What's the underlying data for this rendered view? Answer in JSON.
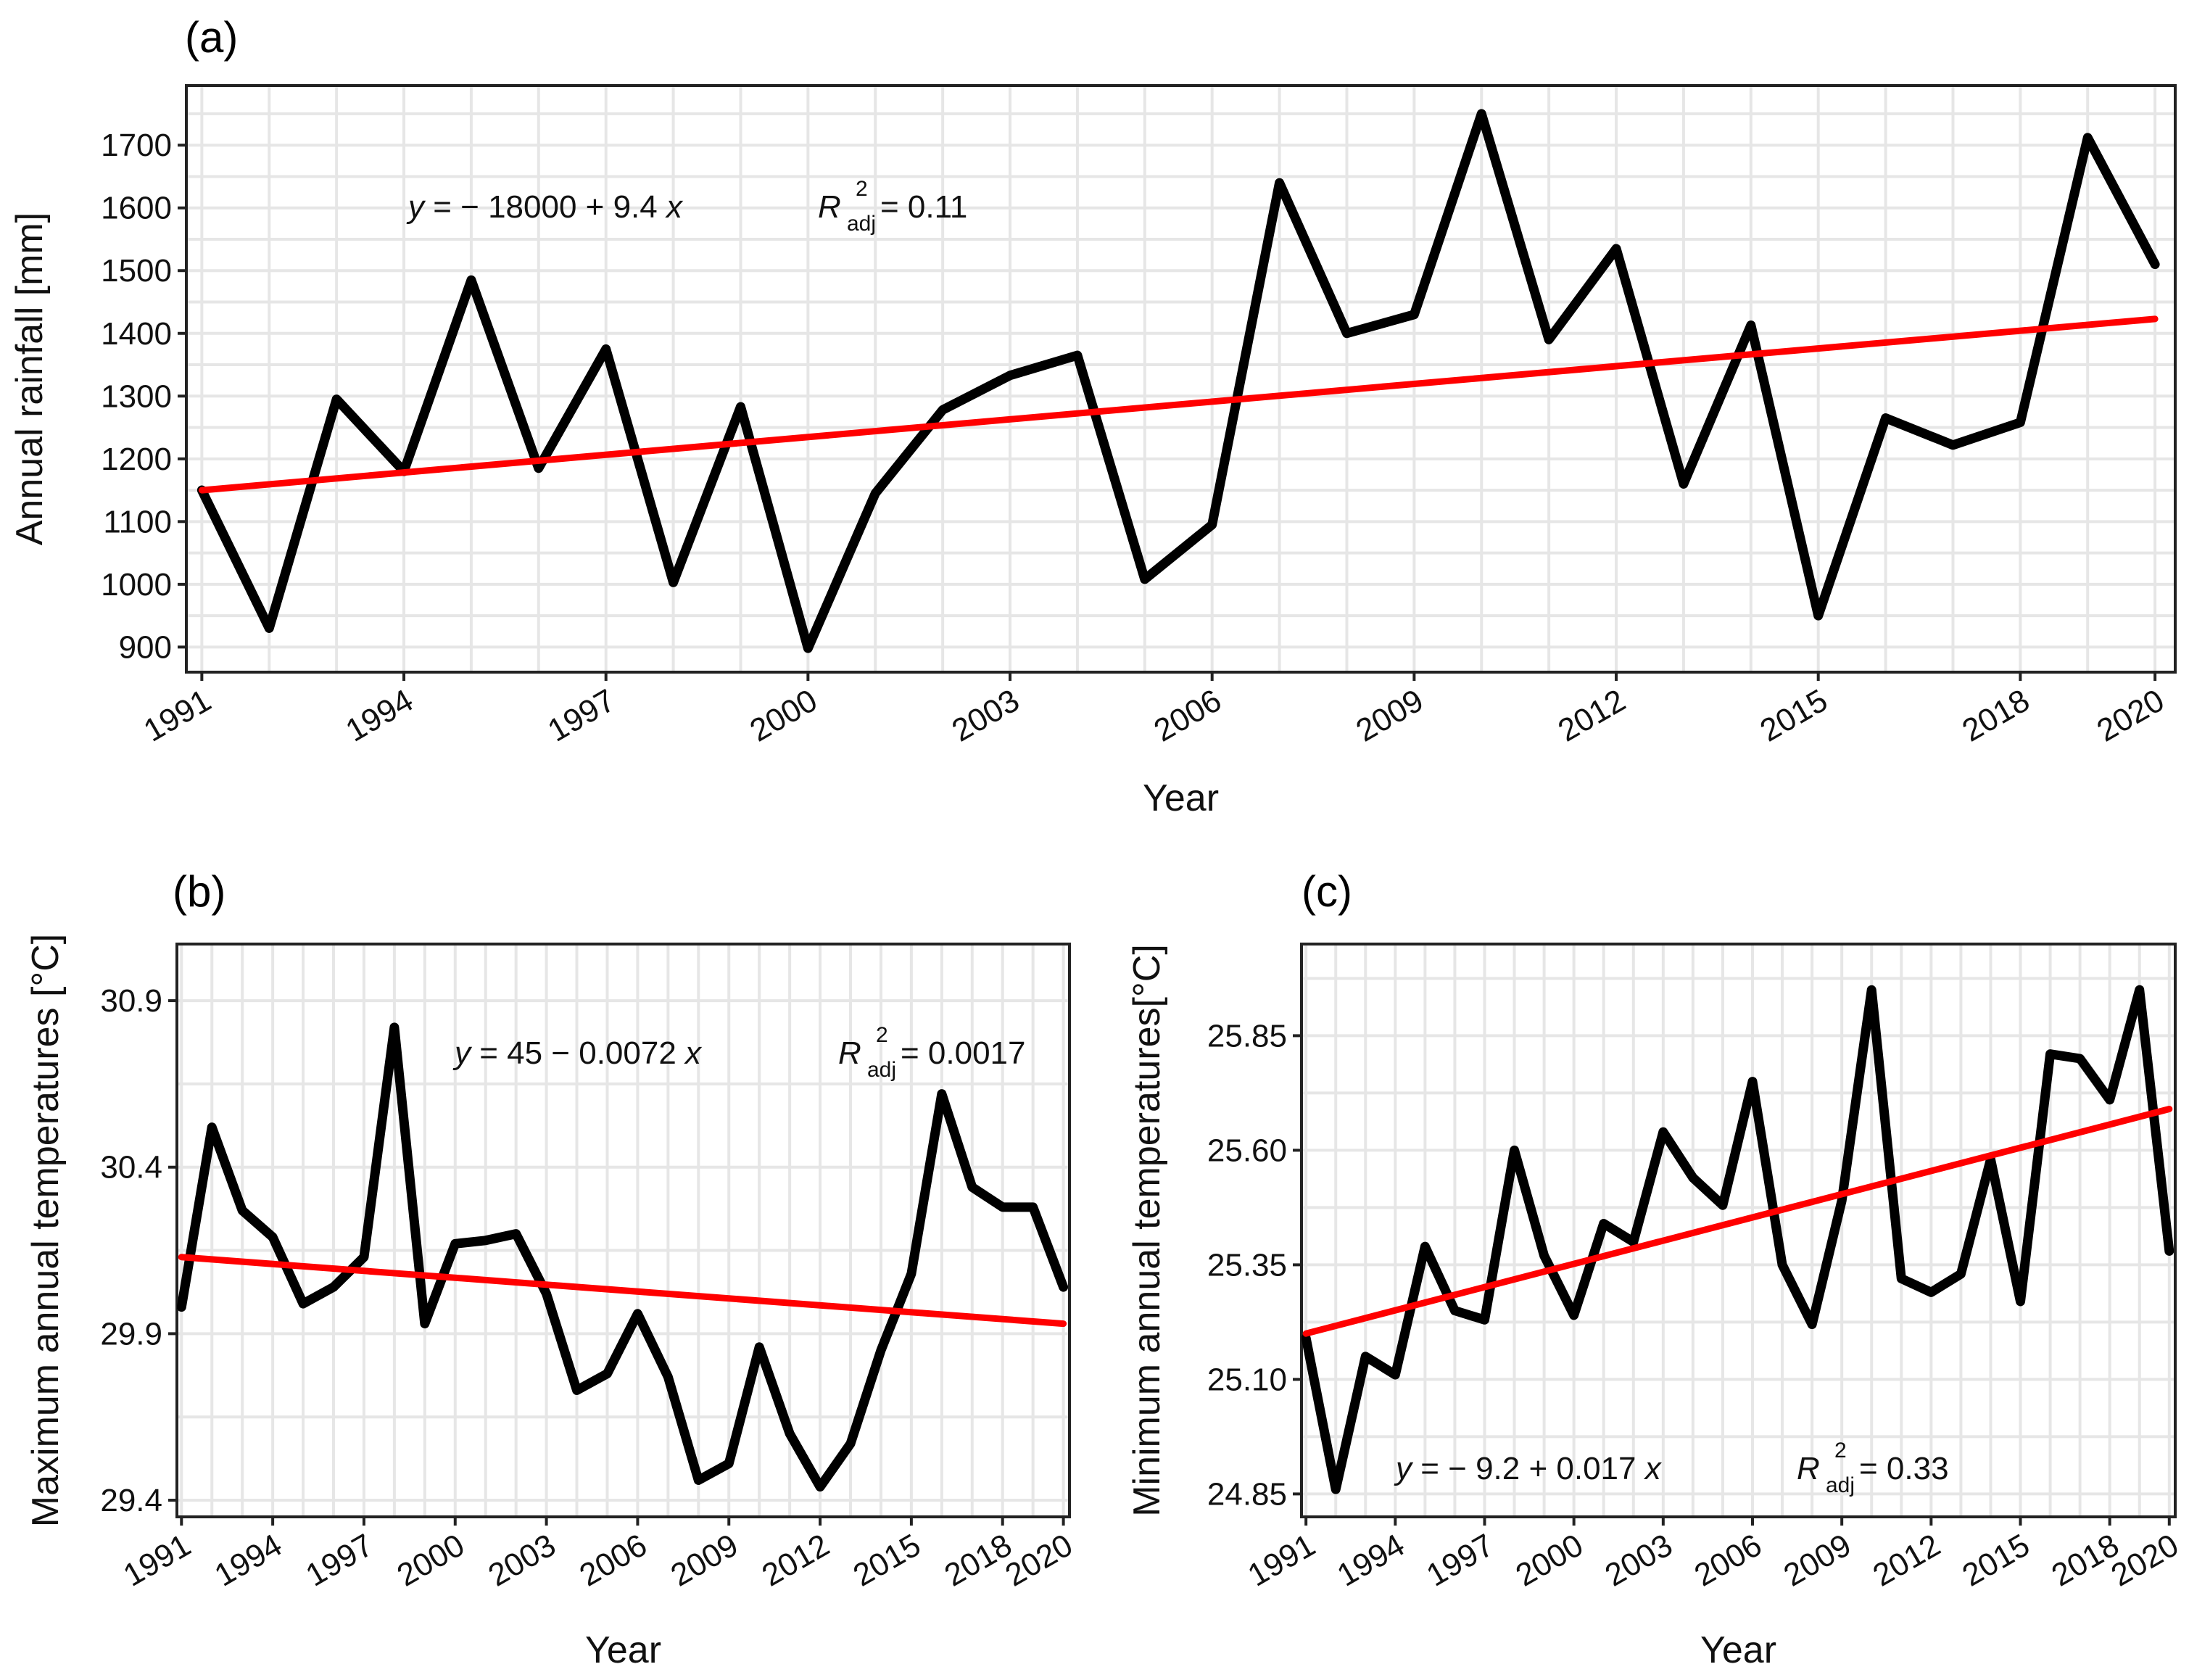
{
  "colors": {
    "observed": "#000000",
    "trend": "#ff0000",
    "grid": "#e6e6e6",
    "background": "#ffffff"
  },
  "chart_data": [
    {
      "id": "a",
      "type": "line",
      "panel_label": "(a)",
      "xlabel": "Year",
      "ylabel": "Annual rainfall [mm]",
      "x": [
        1991,
        1992,
        1993,
        1994,
        1995,
        1996,
        1997,
        1998,
        1999,
        2000,
        2001,
        2002,
        2003,
        2004,
        2005,
        2006,
        2007,
        2008,
        2009,
        2010,
        2011,
        2012,
        2013,
        2014,
        2015,
        2016,
        2017,
        2018,
        2019,
        2020
      ],
      "values": [
        1150,
        930,
        1295,
        1180,
        1485,
        1185,
        1375,
        1003,
        1283,
        898,
        1145,
        1278,
        1333,
        1365,
        1008,
        1095,
        1640,
        1400,
        1430,
        1750,
        1390,
        1535,
        1160,
        1413,
        950,
        1265,
        1222,
        1258,
        1712,
        1510
      ],
      "trend": {
        "intercept": -18000,
        "slope": 9.4,
        "start": [
          1991,
          1150
        ],
        "end": [
          2020,
          1423
        ]
      },
      "xticks": [
        "1991",
        "1994",
        "1997",
        "2000",
        "2003",
        "2006",
        "2009",
        "2012",
        "2015",
        "2018",
        "2020"
      ],
      "yticks": [
        "900",
        "1000",
        "1100",
        "1200",
        "1300",
        "1400",
        "1500",
        "1600",
        "1700"
      ],
      "ylim": [
        860,
        1795
      ],
      "equation": {
        "y": "y",
        "rhs": " = − 18000 + 9.4 ",
        "x": "x"
      },
      "r2": {
        "R": "R",
        "sup": "2",
        "sub": "adj",
        "value": " = 0.11"
      }
    },
    {
      "id": "b",
      "type": "line",
      "panel_label": "(b)",
      "xlabel": "Year",
      "ylabel": "Maximum annual temperatures [°C]",
      "x": [
        1991,
        1992,
        1993,
        1994,
        1995,
        1996,
        1997,
        1998,
        1999,
        2000,
        2001,
        2002,
        2003,
        2004,
        2005,
        2006,
        2007,
        2008,
        2009,
        2010,
        2011,
        2012,
        2013,
        2014,
        2015,
        2016,
        2017,
        2018,
        2019,
        2020
      ],
      "values": [
        29.98,
        30.52,
        30.27,
        30.19,
        29.99,
        30.04,
        30.13,
        30.82,
        29.93,
        30.17,
        30.18,
        30.2,
        30.02,
        29.73,
        29.78,
        29.96,
        29.77,
        29.46,
        29.51,
        29.86,
        29.6,
        29.44,
        29.57,
        29.85,
        30.08,
        30.62,
        30.34,
        30.28,
        30.28,
        30.04
      ],
      "trend": {
        "intercept": 45,
        "slope": -0.0072,
        "start": [
          1991,
          30.13
        ],
        "end": [
          2020,
          29.93
        ]
      },
      "xticks": [
        "1991",
        "1994",
        "1997",
        "2000",
        "2003",
        "2006",
        "2009",
        "2012",
        "2015",
        "2018",
        "2020"
      ],
      "yticks": [
        "29.4",
        "29.9",
        "30.4",
        "30.9"
      ],
      "ylim": [
        29.35,
        31.07
      ],
      "equation": {
        "y": "y",
        "rhs": " = 45 − 0.0072 ",
        "x": "x"
      },
      "r2": {
        "R": "R",
        "sup": "2",
        "sub": "adj",
        "value": " = 0.0017"
      }
    },
    {
      "id": "c",
      "type": "line",
      "panel_label": "(c)",
      "xlabel": "Year",
      "ylabel": "Minimum annual temperatures[°C]",
      "x": [
        1991,
        1992,
        1993,
        1994,
        1995,
        1996,
        1997,
        1998,
        1999,
        2000,
        2001,
        2002,
        2003,
        2004,
        2005,
        2006,
        2007,
        2008,
        2009,
        2010,
        2011,
        2012,
        2013,
        2014,
        2015,
        2016,
        2017,
        2018,
        2019,
        2020
      ],
      "values": [
        25.19,
        24.86,
        25.15,
        25.11,
        25.39,
        25.25,
        25.23,
        25.6,
        25.37,
        25.24,
        25.44,
        25.4,
        25.64,
        25.54,
        25.48,
        25.75,
        25.35,
        25.22,
        25.49,
        25.95,
        25.32,
        25.29,
        25.33,
        25.58,
        25.27,
        25.81,
        25.8,
        25.71,
        25.95,
        25.38
      ],
      "trend": {
        "intercept": -9.2,
        "slope": 0.017,
        "start": [
          1991,
          25.2
        ],
        "end": [
          2020,
          25.69
        ]
      },
      "xticks": [
        "1991",
        "1994",
        "1997",
        "2000",
        "2003",
        "2006",
        "2009",
        "2012",
        "2015",
        "2018",
        "2020"
      ],
      "yticks": [
        "24.85",
        "25.10",
        "25.35",
        "25.60",
        "25.85"
      ],
      "ylim": [
        24.8,
        26.05
      ],
      "equation": {
        "y": "y",
        "rhs": " = − 9.2 + 0.017 ",
        "x": "x"
      },
      "r2": {
        "R": "R",
        "sup": "2",
        "sub": "adj",
        "value": " = 0.33"
      }
    }
  ]
}
